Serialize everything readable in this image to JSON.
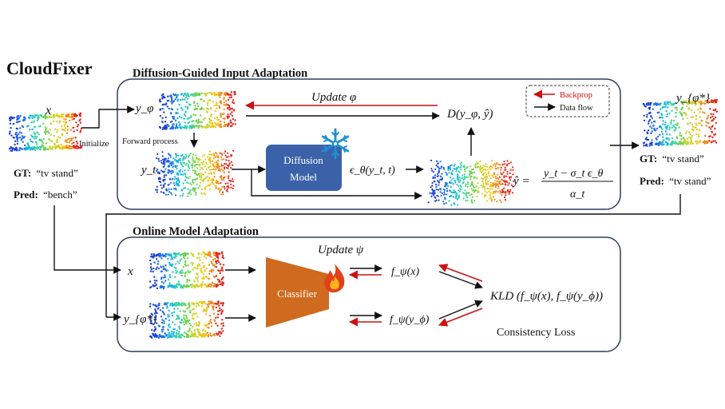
{
  "title": "CloudFixer",
  "sections": {
    "top": "Diffusion-Guided Input Adaptation",
    "bottom": "Online Model Adaptation"
  },
  "legend": {
    "backprop": "Backprop",
    "dataflow": "Data flow"
  },
  "input": {
    "label": "x",
    "initialize": "Initialize",
    "gt_key": "GT:",
    "gt_val": "“tv stand”",
    "pred_key": "Pred:",
    "pred_val": "“bench”"
  },
  "output": {
    "label": "y_{φ*}",
    "gt_key": "GT:",
    "gt_val": "“tv stand”",
    "pred_key": "Pred:",
    "pred_val": "“tv stand”"
  },
  "top": {
    "y_phi": "y_φ",
    "forward": "Forward process",
    "y_t": "y_t",
    "update_phi": "Update φ",
    "diffusion_line1": "Diffusion",
    "diffusion_line2": "Model",
    "eps": "ϵ_θ(y_t, t)",
    "distance": "D(y_φ, ŷ)",
    "yhat_lhs": "ŷ =",
    "yhat_num": "y_t − σ_t ϵ_θ",
    "yhat_den": "α_t"
  },
  "bottom": {
    "x": "x",
    "y_phistar": "y_{φ*}",
    "update_psi": "Update ψ",
    "classifier": "Classifier",
    "f_x": "f_ψ(x)",
    "f_y": "f_ψ(y_ϕ)",
    "kld": "KLD (f_ψ(x), f_ψ(y_ϕ))",
    "loss": "Consistency Loss"
  },
  "colors": {
    "backprop": "#cc1111",
    "diffusion_box": "#3b62a8",
    "classifier": "#cf6a1f",
    "snowflake": "#1f8fd6",
    "flame": "#e0401a",
    "frame": "#2c3e5c"
  },
  "icons": [
    "snowflake-icon",
    "flame-icon"
  ]
}
